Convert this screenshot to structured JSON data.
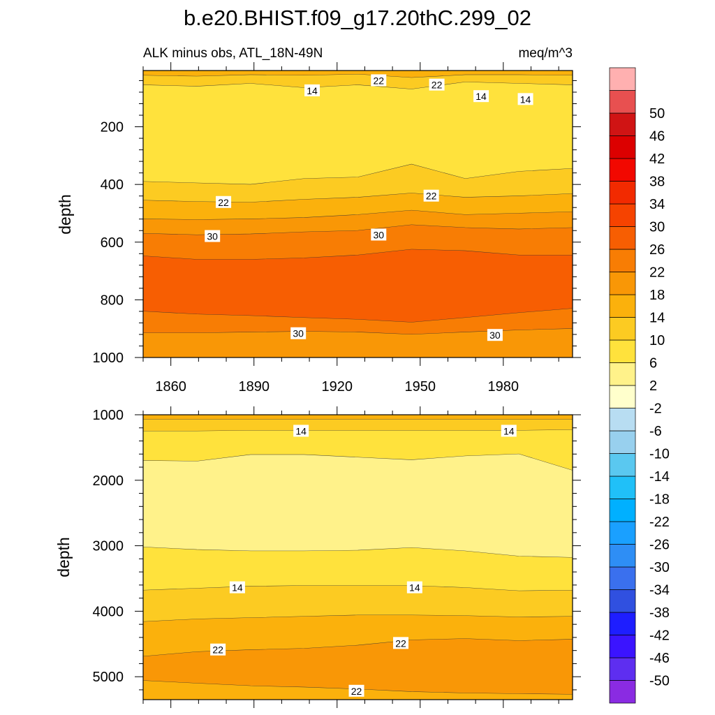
{
  "title": "b.e20.BHIST.f09_g17.20thC.299_02",
  "colors": {
    "levels": [
      "#8a2be2",
      "#5e2ef0",
      "#3b14ff",
      "#1e1eff",
      "#3050e0",
      "#3a70ee",
      "#2e8ef5",
      "#1aa0ff",
      "#00b0ff",
      "#20c0f8",
      "#5ac8f0",
      "#98d0ee",
      "#b8ddf2",
      "#ffffcc",
      "#fff28a",
      "#ffe23c",
      "#fccb22",
      "#fbb10c",
      "#f99706",
      "#f87d04",
      "#f75e02",
      "#f64300",
      "#f22a00",
      "#f20800",
      "#dc0000",
      "#d01414",
      "#e85050",
      "#ffb0b0"
    ]
  },
  "chart_data": [
    {
      "type": "filled-contour",
      "panel": "upper",
      "left_label": "ALK minus obs, ATL_18N-49N",
      "right_label": "meq/m^3",
      "ylabel": "depth",
      "xlim": [
        1850,
        2005
      ],
      "ylim": [
        1000,
        5
      ],
      "x_ticks": [
        1860,
        1890,
        1920,
        1950,
        1980
      ],
      "y_ticks": [
        200,
        400,
        600,
        800,
        1000
      ],
      "bands": [
        {
          "level": 18,
          "top": [
            5,
            5,
            5,
            5,
            5,
            5,
            5,
            5,
            5
          ],
          "bottom": [
            22,
            25,
            20,
            22,
            18,
            30,
            20,
            20,
            22
          ]
        },
        {
          "level": 14,
          "top": [
            22,
            25,
            20,
            22,
            18,
            30,
            20,
            20,
            22
          ],
          "bottom": [
            55,
            60,
            50,
            65,
            55,
            70,
            45,
            50,
            55
          ]
        },
        {
          "level": 10,
          "top": [
            55,
            60,
            50,
            65,
            55,
            70,
            45,
            50,
            55
          ],
          "bottom": [
            390,
            395,
            400,
            380,
            375,
            330,
            380,
            355,
            345
          ]
        },
        {
          "level": 14,
          "top": [
            390,
            395,
            400,
            380,
            375,
            330,
            380,
            355,
            345
          ],
          "bottom": [
            455,
            460,
            462,
            452,
            445,
            430,
            445,
            440,
            432
          ]
        },
        {
          "level": 18,
          "top": [
            455,
            460,
            462,
            452,
            445,
            430,
            445,
            440,
            432
          ],
          "bottom": [
            520,
            522,
            520,
            515,
            505,
            490,
            505,
            500,
            495
          ]
        },
        {
          "level": 22,
          "top": [
            520,
            522,
            520,
            515,
            505,
            490,
            505,
            500,
            495
          ],
          "bottom": [
            570,
            575,
            572,
            565,
            560,
            540,
            550,
            555,
            550
          ]
        },
        {
          "level": 26,
          "top": [
            570,
            575,
            572,
            565,
            560,
            540,
            550,
            555,
            550
          ],
          "bottom": [
            648,
            660,
            660,
            655,
            645,
            625,
            630,
            645,
            645
          ]
        },
        {
          "level": 30,
          "top": [
            648,
            660,
            660,
            655,
            645,
            625,
            630,
            645,
            645
          ],
          "bottom": [
            840,
            850,
            855,
            862,
            868,
            878,
            862,
            845,
            830
          ]
        },
        {
          "level": 26,
          "top": [
            840,
            850,
            855,
            862,
            868,
            878,
            862,
            845,
            830
          ],
          "bottom": [
            915,
            915,
            912,
            910,
            912,
            920,
            912,
            905,
            900
          ]
        },
        {
          "level": 22,
          "top": [
            915,
            915,
            912,
            910,
            912,
            920,
            912,
            905,
            900
          ],
          "bottom": [
            1000,
            1000,
            1000,
            1000,
            1000,
            1000,
            1000,
            1000,
            1000
          ]
        }
      ],
      "contour_labels": [
        {
          "text": "14",
          "x": 1911,
          "y": 75
        },
        {
          "text": "22",
          "x": 1935,
          "y": 40
        },
        {
          "text": "22",
          "x": 1956,
          "y": 55
        },
        {
          "text": "14",
          "x": 1972,
          "y": 95
        },
        {
          "text": "14",
          "x": 1988,
          "y": 105
        },
        {
          "text": "22",
          "x": 1879,
          "y": 462
        },
        {
          "text": "22",
          "x": 1954,
          "y": 440
        },
        {
          "text": "30",
          "x": 1875,
          "y": 580
        },
        {
          "text": "30",
          "x": 1935,
          "y": 575
        },
        {
          "text": "30",
          "x": 1906,
          "y": 917
        },
        {
          "text": "30",
          "x": 1977,
          "y": 923
        }
      ]
    },
    {
      "type": "filled-contour",
      "panel": "lower",
      "ylabel": "depth",
      "xlim": [
        1850,
        2005
      ],
      "ylim": [
        5350,
        1000
      ],
      "y_ticks": [
        1000,
        2000,
        3000,
        4000,
        5000
      ],
      "bands": [
        {
          "level": 18,
          "top": [
            1000,
            1000,
            1000,
            1000,
            1000,
            1000,
            1000,
            1000,
            1000
          ],
          "bottom": [
            1070,
            1070,
            1070,
            1070,
            1070,
            1070,
            1070,
            1070,
            1070
          ]
        },
        {
          "level": 14,
          "top": [
            1070,
            1070,
            1070,
            1070,
            1070,
            1070,
            1070,
            1070,
            1070
          ],
          "bottom": [
            1250,
            1250,
            1240,
            1240,
            1240,
            1240,
            1240,
            1240,
            1230
          ]
        },
        {
          "level": 10,
          "top": [
            1250,
            1250,
            1240,
            1240,
            1240,
            1240,
            1240,
            1240,
            1230
          ],
          "bottom": [
            1700,
            1710,
            1610,
            1610,
            1650,
            1690,
            1630,
            1600,
            1850
          ]
        },
        {
          "level": 6,
          "top": [
            1700,
            1710,
            1610,
            1610,
            1650,
            1690,
            1630,
            1600,
            1850
          ],
          "bottom": [
            3020,
            3060,
            3080,
            3080,
            3070,
            3030,
            3080,
            3160,
            3180
          ]
        },
        {
          "level": 10,
          "top": [
            3020,
            3060,
            3080,
            3080,
            3070,
            3030,
            3080,
            3160,
            3180
          ],
          "bottom": [
            3680,
            3650,
            3620,
            3610,
            3610,
            3610,
            3640,
            3690,
            3680
          ]
        },
        {
          "level": 14,
          "top": [
            3680,
            3650,
            3620,
            3610,
            3610,
            3610,
            3640,
            3690,
            3680
          ],
          "bottom": [
            4160,
            4120,
            4100,
            4080,
            4060,
            4060,
            4070,
            4090,
            4080
          ]
        },
        {
          "level": 18,
          "top": [
            4160,
            4120,
            4100,
            4080,
            4060,
            4060,
            4070,
            4090,
            4080
          ],
          "bottom": [
            4690,
            4620,
            4590,
            4570,
            4520,
            4440,
            4420,
            4450,
            4430
          ]
        },
        {
          "level": 22,
          "top": [
            4690,
            4620,
            4590,
            4570,
            4520,
            4440,
            4420,
            4450,
            4430
          ],
          "bottom": [
            5060,
            5100,
            5140,
            5160,
            5190,
            5230,
            5250,
            5260,
            5270
          ]
        },
        {
          "level": 18,
          "top": [
            5060,
            5100,
            5140,
            5160,
            5190,
            5230,
            5250,
            5260,
            5270
          ],
          "bottom": [
            5350,
            5350,
            5350,
            5350,
            5350,
            5350,
            5350,
            5350,
            5350
          ]
        }
      ],
      "contour_labels": [
        {
          "text": "14",
          "x": 1907,
          "y": 1250
        },
        {
          "text": "14",
          "x": 1982,
          "y": 1250
        },
        {
          "text": "14",
          "x": 1884,
          "y": 3640
        },
        {
          "text": "14",
          "x": 1948,
          "y": 3640
        },
        {
          "text": "22",
          "x": 1877,
          "y": 4590
        },
        {
          "text": "22",
          "x": 1943,
          "y": 4490
        },
        {
          "text": "22",
          "x": 1927,
          "y": 5220
        }
      ]
    },
    {
      "type": "colorbar",
      "labels": [
        "-50",
        "-46",
        "-42",
        "-38",
        "-34",
        "-30",
        "-26",
        "-22",
        "-18",
        "-14",
        "-10",
        "-6",
        "-2",
        "2",
        "6",
        "10",
        "14",
        "18",
        "22",
        "26",
        "30",
        "34",
        "38",
        "42",
        "46",
        "50"
      ]
    }
  ]
}
